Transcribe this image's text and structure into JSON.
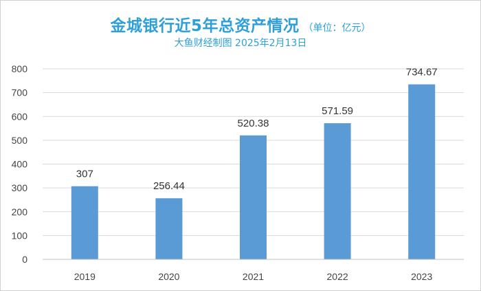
{
  "title": "金城银行近5年总资产情况",
  "unit": "（单位：亿元）",
  "subtitle": "大鱼财经制图 2025年2月13日",
  "colors": {
    "bar": "#5b9bd5",
    "title": "#2e9fd8",
    "grid": "#d9d9d9"
  },
  "chart_data": {
    "type": "bar",
    "categories": [
      "2019",
      "2020",
      "2021",
      "2022",
      "2023"
    ],
    "values": [
      307,
      256.44,
      520.38,
      571.59,
      734.67
    ],
    "value_labels": [
      "307",
      "256.44",
      "520.38",
      "571.59",
      "734.67"
    ],
    "ylim": [
      0,
      800
    ],
    "yticks": [
      "0",
      "100",
      "200",
      "300",
      "400",
      "500",
      "600",
      "700",
      "800"
    ],
    "grid": true,
    "legend": "none"
  }
}
